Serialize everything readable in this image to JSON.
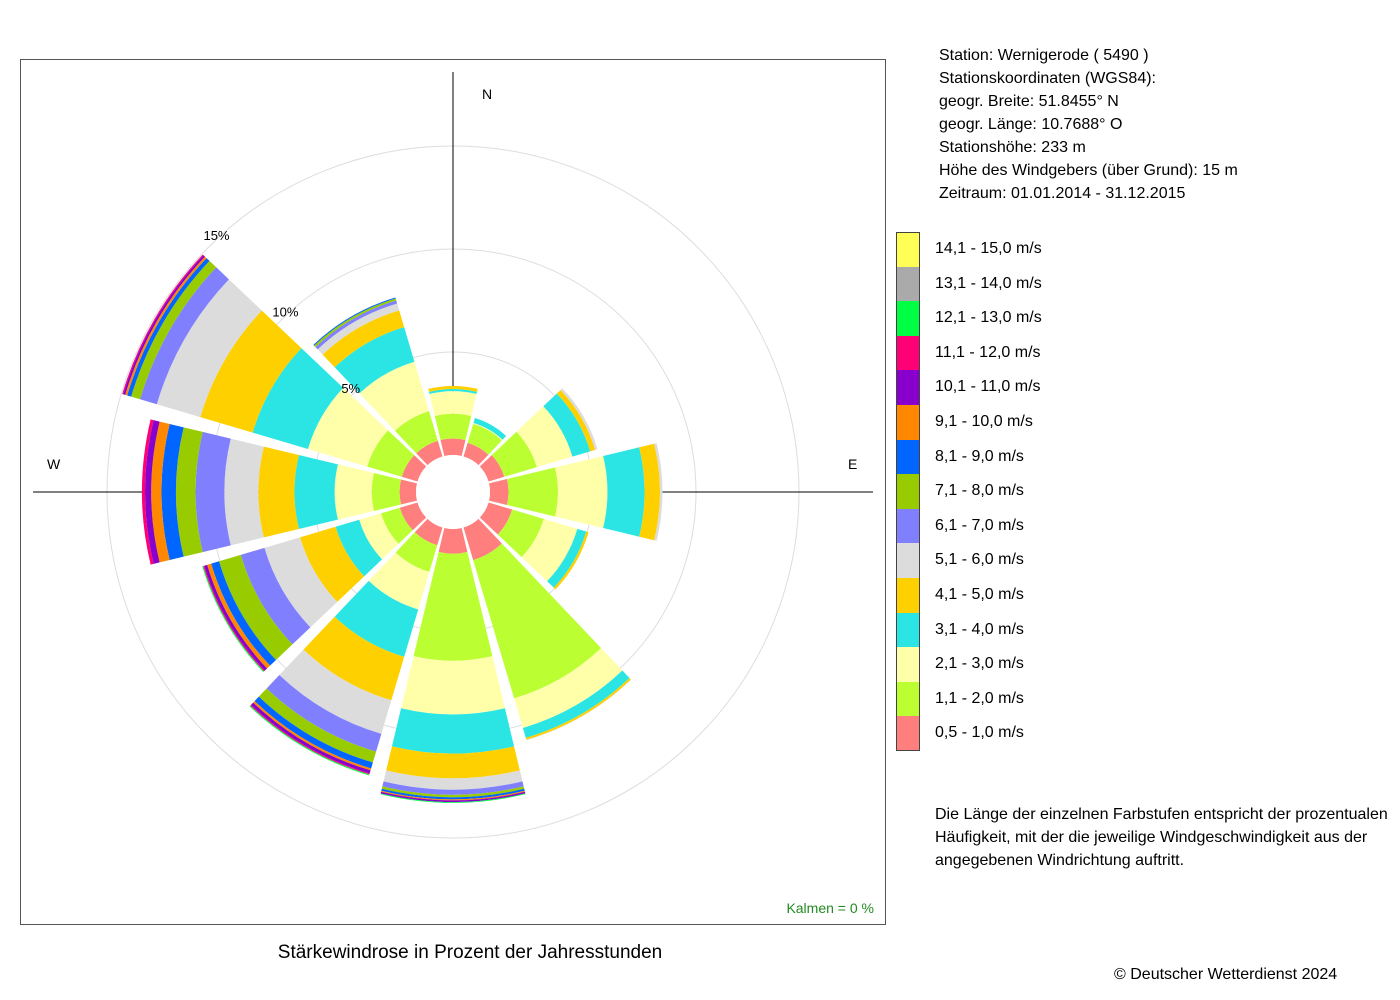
{
  "station": {
    "line1": "Station:  Wernigerode  ( 5490 )",
    "line2": "Stationskoordinaten (WGS84):",
    "line3": "geogr. Breite: 51.8455° N",
    "line4": "geogr. Länge: 10.7688° O",
    "line5": "Stationshöhe: 233 m",
    "line6": "Höhe des Windgebers (über Grund): 15 m",
    "line7": "Zeitraum: 01.01.2014 - 31.12.2015"
  },
  "note": "Die Länge der einzelnen Farbstufen entspricht der prozentualen Häufigkeit, mit der die jeweilige Windgeschwindigkeit aus der angegebenen Windrichtung auftritt.",
  "copyright": "© Deutscher Wetterdienst  2024",
  "chart_data": {
    "type": "windrose",
    "title": "Stärkewindrose in Prozent der Jahresstunden",
    "calm_label": "Kalmen  =  0 %",
    "compass_labels": {
      "N": "N",
      "E": "E",
      "W": "W"
    },
    "rings": [
      {
        "value": 5,
        "label": "5%"
      },
      {
        "value": 10,
        "label": "10%"
      },
      {
        "value": 15,
        "label": "15%"
      }
    ],
    "bins": [
      {
        "label": "0,5 - 1,0 m/s",
        "color": "#FF7F7F"
      },
      {
        "label": "1,1 - 2,0 m/s",
        "color": "#BBFF33"
      },
      {
        "label": "2,1 - 3,0 m/s",
        "color": "#FFFFAA"
      },
      {
        "label": "3,1 - 4,0 m/s",
        "color": "#2BE5E5"
      },
      {
        "label": "4,1 - 5,0 m/s",
        "color": "#FFD000"
      },
      {
        "label": "5,1 - 6,0 m/s",
        "color": "#DCDCDC"
      },
      {
        "label": "6,1 - 7,0 m/s",
        "color": "#8080FF"
      },
      {
        "label": "7,1 - 8,0 m/s",
        "color": "#99CC00"
      },
      {
        "label": "8,1 - 9,0 m/s",
        "color": "#0066FF"
      },
      {
        "label": "9,1 - 10,0 m/s",
        "color": "#FF8800"
      },
      {
        "label": "10,1 - 11,0 m/s",
        "color": "#8800CC"
      },
      {
        "label": "11,1 - 12,0 m/s",
        "color": "#FF0077"
      },
      {
        "label": "12,1 - 13,0 m/s",
        "color": "#00FF44"
      },
      {
        "label": "13,1 - 14,0 m/s",
        "color": "#AAAAAA"
      },
      {
        "label": "14,1 - 15,0 m/s",
        "color": "#FFFF55"
      }
    ],
    "directions": [
      0,
      30,
      60,
      90,
      120,
      150,
      180,
      210,
      240,
      270,
      300,
      330
    ],
    "series": [
      {
        "direction": 0,
        "values": [
          0.8,
          1.2,
          1.1,
          0.1,
          0.15,
          0,
          0,
          0,
          0,
          0,
          0,
          0,
          0,
          0,
          0
        ]
      },
      {
        "direction": 30,
        "values": [
          0.7,
          0.95,
          0.05,
          0.25,
          0,
          0,
          0,
          0,
          0,
          0,
          0,
          0,
          0,
          0,
          0
        ]
      },
      {
        "direction": 60,
        "values": [
          0.8,
          1.65,
          1.8,
          0.9,
          0.25,
          0.12,
          0,
          0,
          0,
          0,
          0,
          0,
          0,
          0,
          0
        ]
      },
      {
        "direction": 90,
        "values": [
          0.9,
          2.4,
          2.4,
          1.8,
          0.75,
          0.12,
          0,
          0,
          0,
          0,
          0,
          0,
          0,
          0,
          0
        ]
      },
      {
        "direction": 120,
        "values": [
          1.2,
          1.6,
          1.7,
          0.45,
          0.12,
          0,
          0,
          0,
          0,
          0,
          0,
          0,
          0,
          0,
          0
        ]
      },
      {
        "direction": 150,
        "values": [
          1.65,
          7.0,
          1.5,
          0.5,
          0.1,
          0.02,
          0,
          0,
          0,
          0,
          0,
          0,
          0,
          0,
          0
        ]
      },
      {
        "direction": 180,
        "values": [
          1.2,
          5.2,
          2.6,
          1.9,
          1.2,
          0.55,
          0.25,
          0.12,
          0.1,
          0.05,
          0.08,
          0,
          0.04,
          0,
          0
        ]
      },
      {
        "direction": 210,
        "values": [
          0.9,
          1.35,
          1.9,
          2.4,
          2.2,
          1.7,
          0.9,
          0.55,
          0.3,
          0.1,
          0.15,
          0.05,
          0.05,
          0,
          0
        ]
      },
      {
        "direction": 240,
        "values": [
          0.9,
          0.95,
          1.1,
          1.2,
          1.8,
          1.8,
          1.2,
          1.1,
          0.4,
          0.2,
          0.15,
          0.05,
          0.05,
          0,
          0
        ]
      },
      {
        "direction": 270,
        "values": [
          0.8,
          1.35,
          1.8,
          1.95,
          1.75,
          1.65,
          1.4,
          0.95,
          0.7,
          0.5,
          0.3,
          0.15,
          0,
          0,
          0
        ]
      },
      {
        "direction": 300,
        "values": [
          0.8,
          1.75,
          3.0,
          2.8,
          2.65,
          2.2,
          0.85,
          0.45,
          0.2,
          0.1,
          0.1,
          0.05,
          0,
          0,
          0
        ]
      },
      {
        "direction": 330,
        "values": [
          0.8,
          1.5,
          2.5,
          1.75,
          0.85,
          0.35,
          0.15,
          0.1,
          0.05,
          0,
          0,
          0,
          0,
          0,
          0
        ]
      }
    ]
  }
}
